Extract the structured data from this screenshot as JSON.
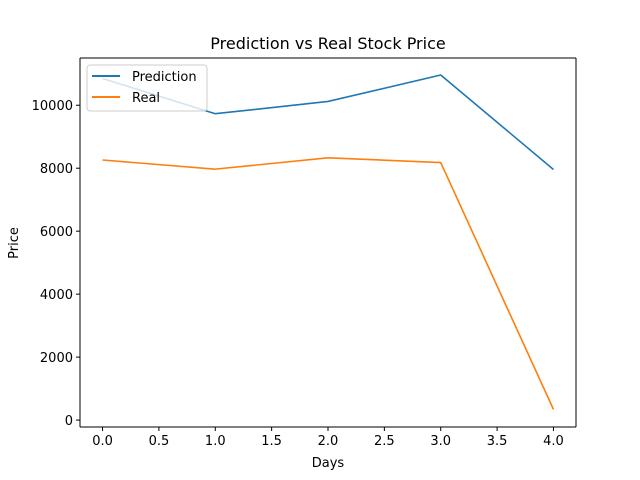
{
  "chart_data": {
    "type": "line",
    "title": "Prediction vs Real Stock Price",
    "xlabel": "Days",
    "ylabel": "Price",
    "x": [
      0,
      1,
      2,
      3,
      4
    ],
    "xlim": [
      -0.2,
      4.2
    ],
    "ylim": [
      -220,
      11500
    ],
    "xticks": [
      0,
      0.5,
      1,
      1.5,
      2,
      2.5,
      3,
      3.5,
      4
    ],
    "xtick_labels": [
      "0.0",
      "0.5",
      "1.0",
      "1.5",
      "2.0",
      "2.5",
      "3.0",
      "3.5",
      "4.0"
    ],
    "yticks": [
      0,
      2000,
      4000,
      6000,
      8000,
      10000
    ],
    "ytick_labels": [
      "0",
      "2000",
      "4000",
      "6000",
      "8000",
      "10000"
    ],
    "grid": false,
    "legend_position": "upper-left",
    "series": [
      {
        "name": "Prediction",
        "color": "#1f77b4",
        "values": [
          10850,
          9730,
          10120,
          10960,
          7960
        ]
      },
      {
        "name": "Real",
        "color": "#ff7f0e",
        "values": [
          8260,
          7970,
          8330,
          8180,
          340
        ]
      }
    ]
  }
}
